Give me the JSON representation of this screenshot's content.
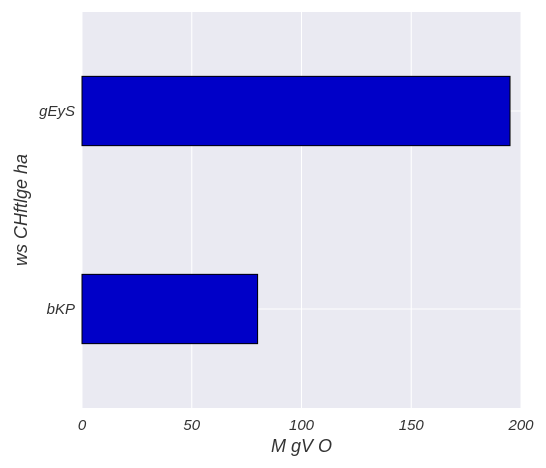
{
  "chart_data": {
    "type": "bar",
    "orientation": "horizontal",
    "categories": [
      "bKP",
      "gEyS"
    ],
    "values": [
      80,
      195
    ],
    "xlabel": "M gV O",
    "ylabel": "ws CHftlge ha",
    "xlim": [
      0,
      200
    ],
    "xticks": [
      "0",
      "50",
      "100",
      "150",
      "200"
    ],
    "grid": true,
    "colors": {
      "bar": "#0000c8",
      "bar_edge": "#000000",
      "plot_background": "#eaeaf2",
      "grid": "#ffffff"
    }
  }
}
